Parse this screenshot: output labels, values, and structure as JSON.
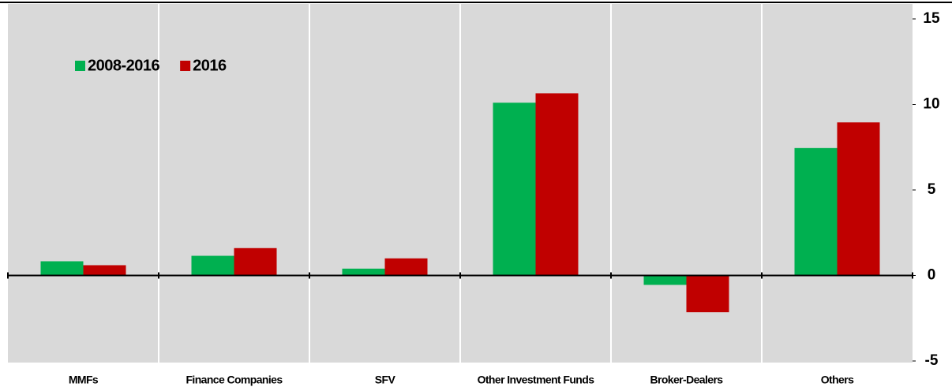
{
  "chart_data": {
    "type": "bar",
    "categories": [
      "MMFs",
      "Finance Companies",
      "SFV",
      "Other Investment Funds",
      "Broker-Dealers",
      "Others"
    ],
    "series": [
      {
        "name": "2008-2016",
        "color": "#00b050",
        "values": [
          0.83,
          1.15,
          0.4,
          10.1,
          -0.55,
          7.45
        ]
      },
      {
        "name": "2016",
        "color": "#c00000",
        "values": [
          0.6,
          1.6,
          1.0,
          10.65,
          -2.15,
          8.95
        ]
      }
    ],
    "ylim": [
      -5,
      15
    ],
    "yticks": [
      -5,
      0,
      5,
      10,
      15
    ],
    "y_axis_side": "right",
    "background": "#d9d9d9"
  }
}
